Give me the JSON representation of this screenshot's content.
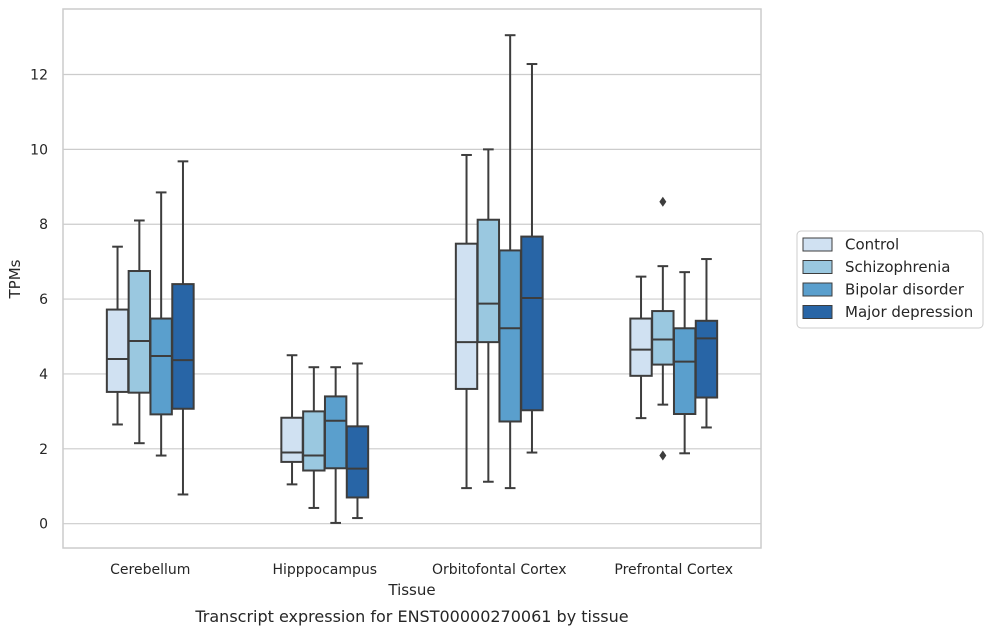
{
  "chart_data": {
    "type": "boxplot",
    "caption": "Transcript expression for ENST00000270061 by tissue",
    "xlabel": "Tissue",
    "ylabel": "TPMs",
    "ylim": [
      -0.65,
      13.75
    ],
    "yticks": [
      0,
      2,
      4,
      6,
      8,
      10,
      12
    ],
    "grid": true,
    "legend_position": "right",
    "categories": [
      "Cerebellum",
      "Hipppocampus",
      "Orbitofontal Cortex",
      "Prefrontal Cortex"
    ],
    "series": [
      {
        "name": "Control",
        "color": "#d0e1f2",
        "boxes": [
          {
            "whislo": 2.65,
            "q1": 3.52,
            "med": 4.4,
            "q3": 5.72,
            "whishi": 7.4,
            "fliers": []
          },
          {
            "whislo": 1.05,
            "q1": 1.65,
            "med": 1.9,
            "q3": 2.83,
            "whishi": 4.5,
            "fliers": []
          },
          {
            "whislo": 0.95,
            "q1": 3.6,
            "med": 4.85,
            "q3": 7.48,
            "whishi": 9.85,
            "fliers": []
          },
          {
            "whislo": 2.82,
            "q1": 3.95,
            "med": 4.65,
            "q3": 5.48,
            "whishi": 6.6,
            "fliers": []
          }
        ]
      },
      {
        "name": "Schizophrenia",
        "color": "#9ac8e0",
        "boxes": [
          {
            "whislo": 2.15,
            "q1": 3.5,
            "med": 4.88,
            "q3": 6.75,
            "whishi": 8.1,
            "fliers": []
          },
          {
            "whislo": 0.42,
            "q1": 1.42,
            "med": 1.82,
            "q3": 3.0,
            "whishi": 4.18,
            "fliers": []
          },
          {
            "whislo": 1.12,
            "q1": 4.85,
            "med": 5.88,
            "q3": 8.12,
            "whishi": 10.0,
            "fliers": []
          },
          {
            "whislo": 3.18,
            "q1": 4.25,
            "med": 4.92,
            "q3": 5.68,
            "whishi": 6.88,
            "fliers": [
              8.6,
              1.82
            ]
          }
        ]
      },
      {
        "name": "Bipolar disorder",
        "color": "#5a9fcd",
        "boxes": [
          {
            "whislo": 1.82,
            "q1": 2.92,
            "med": 4.48,
            "q3": 5.48,
            "whishi": 8.85,
            "fliers": []
          },
          {
            "whislo": 0.02,
            "q1": 1.48,
            "med": 2.75,
            "q3": 3.4,
            "whishi": 4.18,
            "fliers": []
          },
          {
            "whislo": 0.95,
            "q1": 2.73,
            "med": 5.22,
            "q3": 7.3,
            "whishi": 13.05,
            "fliers": []
          },
          {
            "whislo": 1.88,
            "q1": 2.93,
            "med": 4.33,
            "q3": 5.22,
            "whishi": 6.72,
            "fliers": []
          }
        ]
      },
      {
        "name": "Major depression",
        "color": "#2865a6",
        "boxes": [
          {
            "whislo": 0.78,
            "q1": 3.07,
            "med": 4.37,
            "q3": 6.4,
            "whishi": 9.68,
            "fliers": []
          },
          {
            "whislo": 0.15,
            "q1": 0.7,
            "med": 1.47,
            "q3": 2.6,
            "whishi": 4.28,
            "fliers": []
          },
          {
            "whislo": 1.9,
            "q1": 3.03,
            "med": 6.03,
            "q3": 7.67,
            "whishi": 12.28,
            "fliers": []
          },
          {
            "whislo": 2.57,
            "q1": 3.37,
            "med": 4.95,
            "q3": 5.42,
            "whishi": 7.07,
            "fliers": []
          }
        ]
      }
    ]
  }
}
